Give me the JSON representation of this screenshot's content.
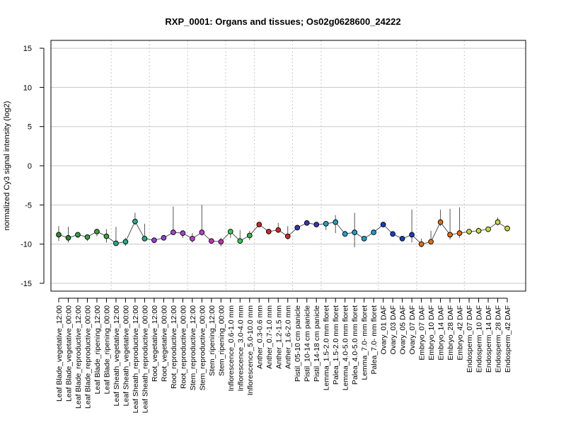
{
  "chart_data": {
    "type": "line",
    "title": "RXP_0001: Organs and tissues; Os02g0628600_24222",
    "ylabel": "normalized Cy3 signal intensity (log2)",
    "xlabel": "",
    "ylim": [
      -16,
      16
    ],
    "yticks": [
      -15,
      -10,
      -5,
      0,
      5,
      10,
      15
    ],
    "grid": "horizontal",
    "categories": [
      "Leaf Blade_vegetative_12:00",
      "Leaf Blade_vegetative_00:00",
      "Leaf Blade_reproductive_12:00",
      "Leaf Blade_reproductive_00:00",
      "Leaf Blade_ripening_12:00",
      "Leaf Blade_ripening_00:00",
      "Leaf Sheath_vegetative_12:00",
      "Leaf Sheath_vegetative_00:00",
      "Leaf Sheath_reproductive_12:00",
      "Leaf Sheath_reproductive_00:00",
      "Root_vegetative_12:00",
      "Root_vegetative_00:00",
      "Root_reproductive_12:00",
      "Root_reproductive_00:00",
      "Stem_reproductive_12:00",
      "Stem_reproductive_00:00",
      "Stem_ripening_12:00",
      "Stem_ripening_00:00",
      "Inflorescence_0.6-1.0 mm",
      "Inflorescence_3.0-4.0 mm",
      "Inflorescence_5.0-10.0 mm",
      "Anther_0.3-0.6 mm",
      "Anther_0.7-1.0 mm",
      "Anther_1.2-1.5 mm",
      "Anther_1.6-2.0 mm",
      "Pistil_05-10 cm panicle",
      "Pistil_10-14 cm panicle",
      "Pistil_14-18 cm panicle",
      "Lemma_1.5-2.0 mm floret",
      "Palea_1.5-2.0 mm floret",
      "Lemma_4.0-5.0 mm floret",
      "Palea_4.0-5.0 mm floret",
      "Lemma_7.0- mm floret",
      "Palea_7.0- mm floret",
      "Ovary_01 DAF",
      "Ovary_03 DAF",
      "Ovary_05 DAF",
      "Ovary_07 DAF",
      "Embryo_07 DAF",
      "Embryo_10 DAF",
      "Embryo_14 DAF",
      "Embryo_28 DAF",
      "Embryo_42 DAF",
      "Endosperm_07 DAF",
      "Endosperm_10 DAF",
      "Endosperm_14 DAF",
      "Endosperm_28 DAF",
      "Endosperm_42 DAF"
    ],
    "values": [
      -8.8,
      -9.2,
      -8.8,
      -9.1,
      -8.4,
      -9.0,
      -9.9,
      -9.7,
      -7.1,
      -9.3,
      -9.5,
      -9.2,
      -8.5,
      -8.6,
      -9.3,
      -8.5,
      -9.6,
      -9.7,
      -8.4,
      -9.6,
      -8.9,
      -7.5,
      -8.4,
      -8.2,
      -9.0,
      -7.9,
      -7.3,
      -7.5,
      -7.4,
      -7.2,
      -8.7,
      -8.5,
      -9.3,
      -8.5,
      -7.5,
      -8.7,
      -9.3,
      -8.8,
      -10.0,
      -9.7,
      -7.2,
      -8.8,
      -8.6,
      -8.4,
      -8.3,
      -8.1,
      -7.2,
      -8.0
    ],
    "err_low": [
      -9.6,
      -9.8,
      -9.2,
      -9.6,
      -9.0,
      -9.8,
      -10.1,
      -10.2,
      -7.6,
      -9.6,
      -9.7,
      -9.5,
      -8.8,
      -9.2,
      -9.8,
      -8.9,
      -9.8,
      -10.3,
      -9.2,
      -9.9,
      -9.5,
      -7.8,
      -8.6,
      -8.5,
      -9.4,
      -8.1,
      -7.6,
      -7.8,
      -8.2,
      -8.6,
      -9.0,
      -10.4,
      -9.6,
      -8.8,
      -7.8,
      -9.0,
      -9.5,
      -9.8,
      -10.4,
      -10.0,
      -7.7,
      -9.4,
      -9.2,
      -8.8,
      -8.7,
      -8.4,
      -7.6,
      -8.4
    ],
    "err_high": [
      -7.7,
      -7.8,
      -8.5,
      -8.8,
      -8.1,
      -8.1,
      -7.8,
      -9.2,
      -6.0,
      -7.4,
      -9.3,
      -9.0,
      -5.2,
      -8.3,
      -8.6,
      -5.0,
      -9.4,
      -9.2,
      -8.1,
      -8.2,
      -8.3,
      -7.2,
      -8.2,
      -7.3,
      -7.7,
      -7.7,
      -7.1,
      -7.3,
      -7.1,
      -6.3,
      -8.3,
      -6.0,
      -9.1,
      -8.3,
      -7.2,
      -8.4,
      -9.1,
      -5.6,
      -9.3,
      -8.3,
      -5.6,
      -5.5,
      -5.3,
      -8.1,
      -7.9,
      -7.8,
      -6.6,
      -7.6
    ],
    "point_colors": [
      "#2d8a2d",
      "#2d8a2d",
      "#3aa03a",
      "#3aa03a",
      "#3aa03a",
      "#3aa03a",
      "#1fae8c",
      "#1fae8c",
      "#1fae8c",
      "#1fae8c",
      "#9a3fd6",
      "#9a3fd6",
      "#a543d6",
      "#a543d6",
      "#c13fcd",
      "#c13fcd",
      "#c82fb8",
      "#c82fb8",
      "#3ccc4c",
      "#38c448",
      "#32b844",
      "#d42626",
      "#d42626",
      "#d42626",
      "#d42626",
      "#3a34b8",
      "#3a34b8",
      "#3a34b8",
      "#1e9fcf",
      "#1e9fcf",
      "#1e9fcf",
      "#1e9fcf",
      "#1e9fcf",
      "#1e9fcf",
      "#1340c9",
      "#1340c9",
      "#1340c9",
      "#1340c9",
      "#e56d12",
      "#e56d12",
      "#e56d12",
      "#e56d12",
      "#e56d12",
      "#c7d83a",
      "#c7d83a",
      "#c7d83a",
      "#c7d83a",
      "#c7d83a"
    ],
    "group_separators_after": [
      5,
      9,
      13,
      17,
      20,
      24,
      27,
      33,
      37,
      42
    ]
  }
}
